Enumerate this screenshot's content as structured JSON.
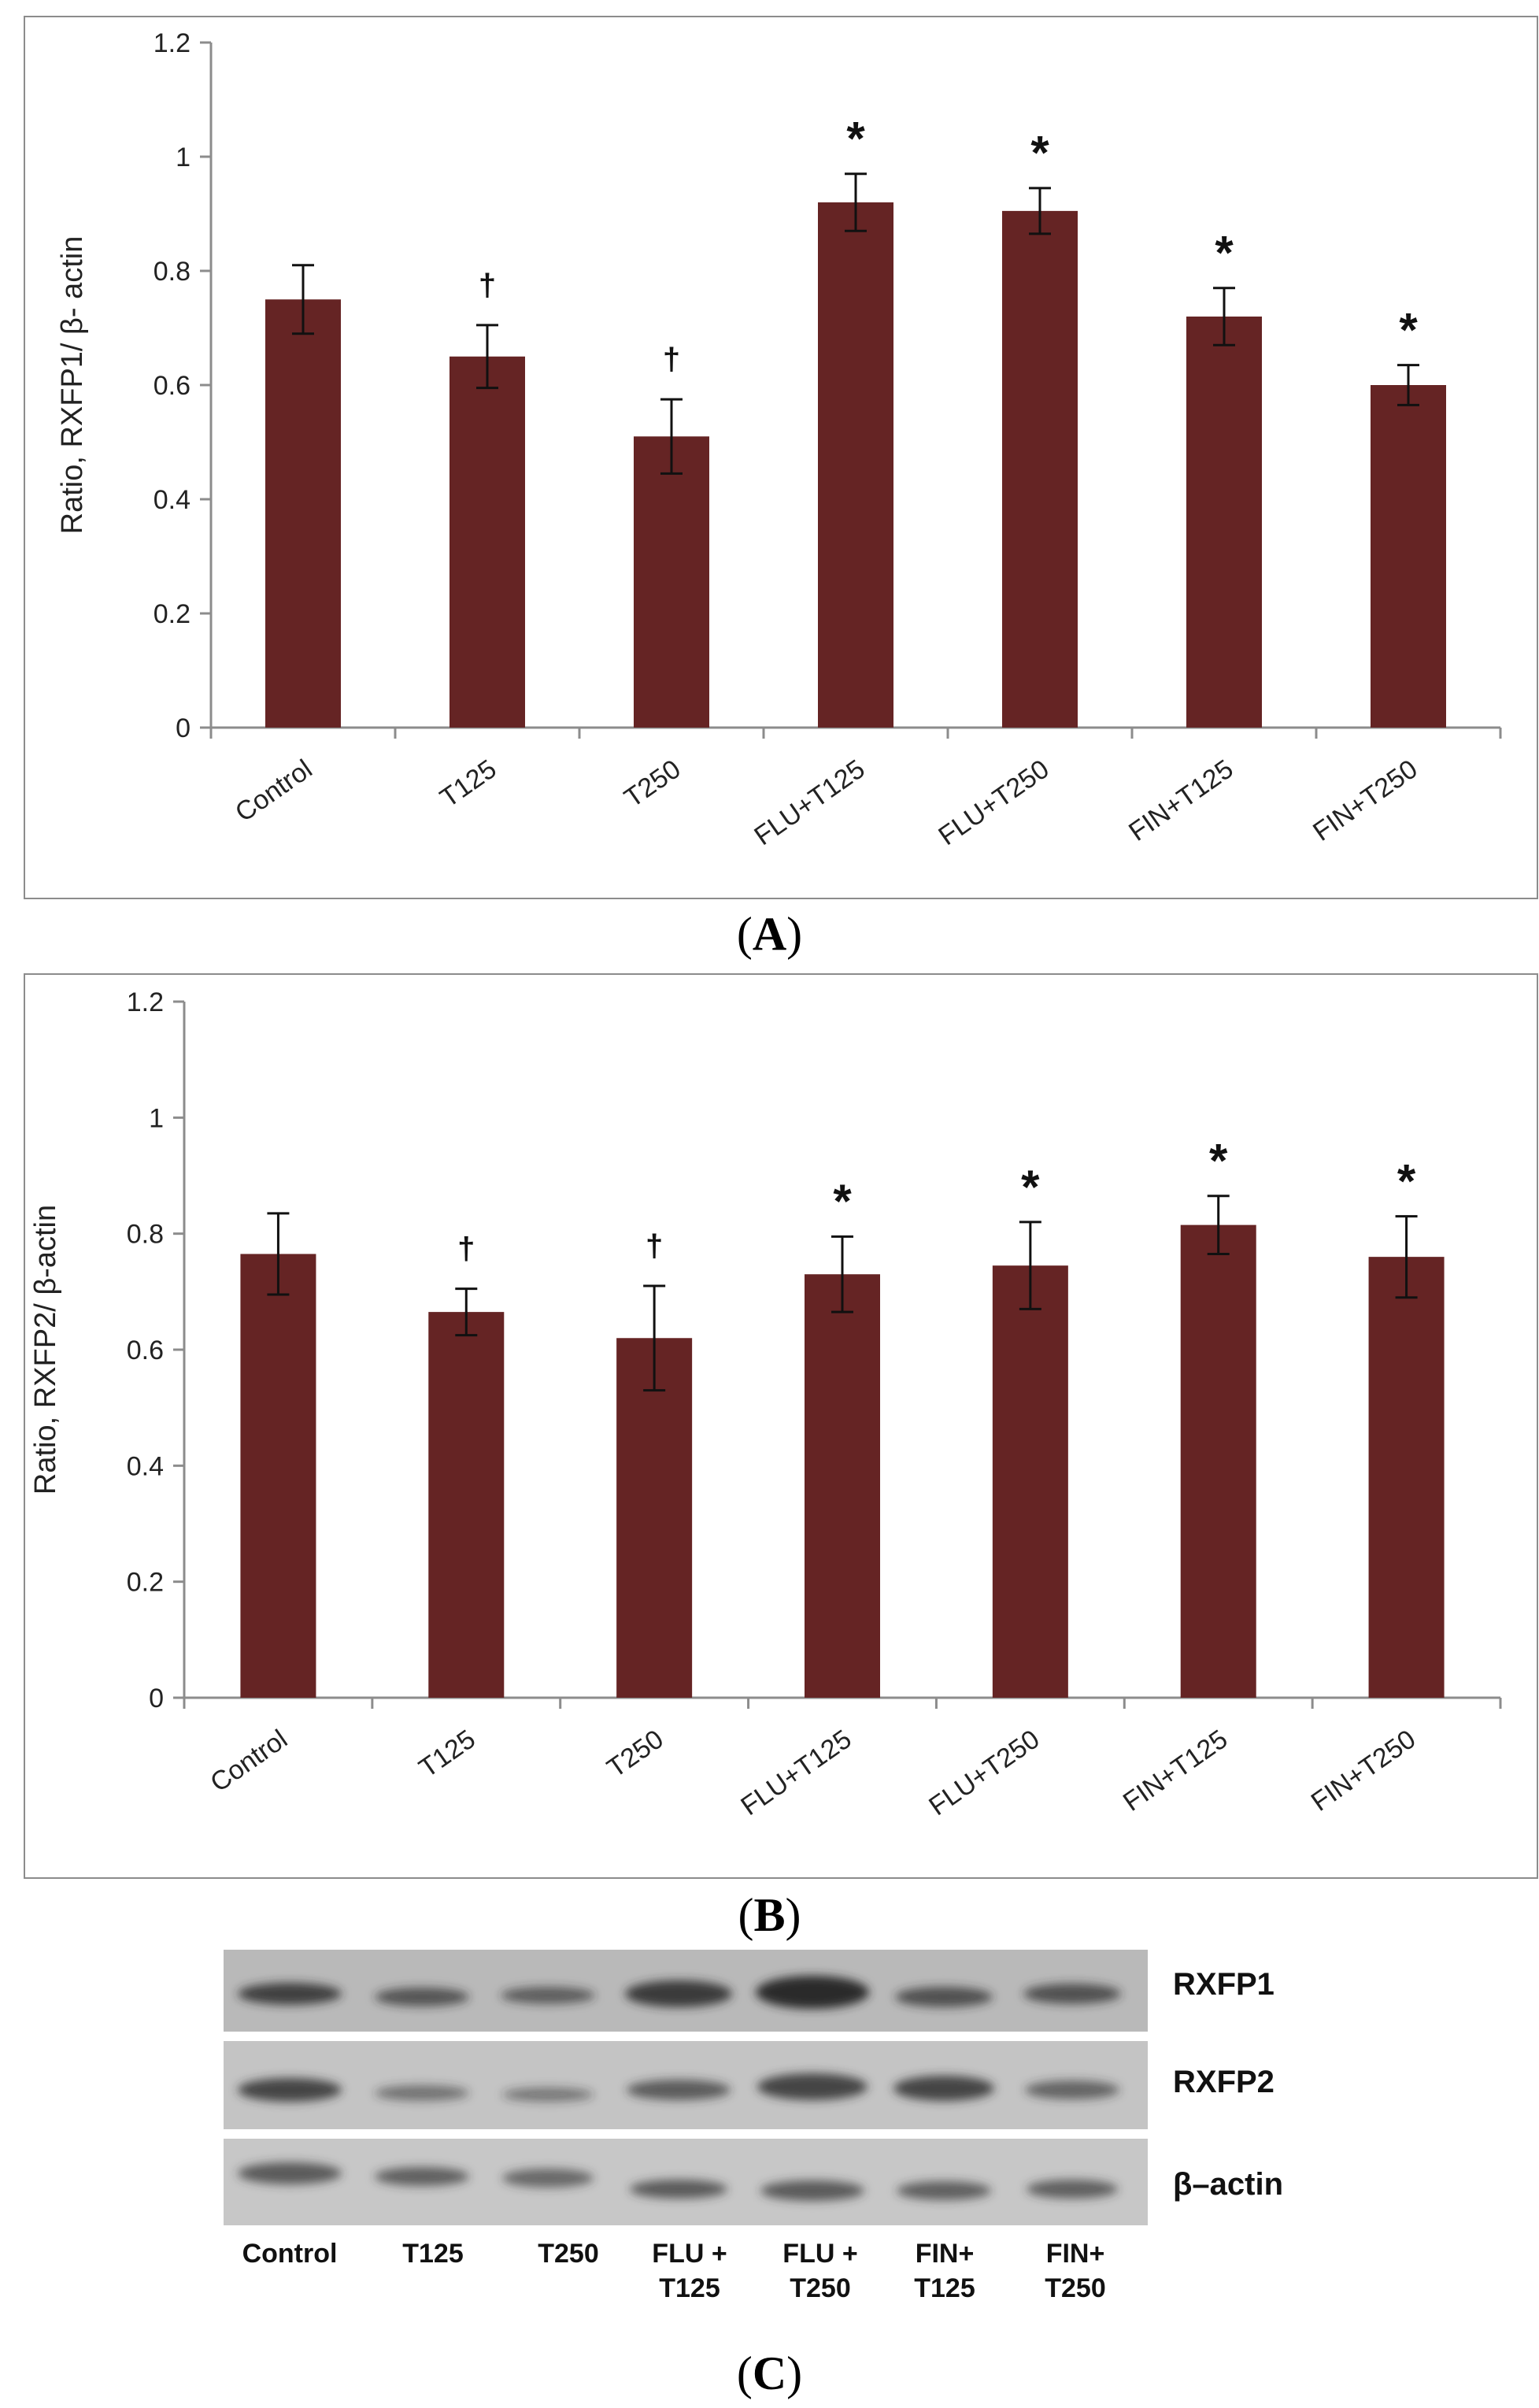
{
  "colors": {
    "bar": "#652424",
    "axis": "#8c8c8c",
    "text": "#222222"
  },
  "panels": {
    "a": {
      "label_open": "(",
      "label_letter": "A",
      "label_close": ")"
    },
    "b": {
      "label_open": "(",
      "label_letter": "B",
      "label_close": ")"
    },
    "c": {
      "label_open": "(",
      "label_letter": "C",
      "label_close": ")"
    }
  },
  "chart_data": [
    {
      "id": "A",
      "type": "bar",
      "title": "",
      "xlabel": "",
      "ylabel": "Ratio, RXFP1/ β- actin",
      "ylim": [
        0,
        1.2
      ],
      "yticks": [
        "0",
        "0.2",
        "0.4",
        "0.6",
        "0.8",
        "1",
        "1.2"
      ],
      "categories": [
        "Control",
        "T125",
        "T250",
        "FLU+T125",
        "FLU+T250",
        "FIN+T125",
        "FIN+T250"
      ],
      "values": [
        0.75,
        0.65,
        0.51,
        0.92,
        0.905,
        0.72,
        0.6
      ],
      "errors": [
        0.06,
        0.055,
        0.065,
        0.05,
        0.04,
        0.05,
        0.035
      ],
      "annotations": [
        "",
        "†",
        "†",
        "*",
        "*",
        "*",
        "*"
      ],
      "grid": false
    },
    {
      "id": "B",
      "type": "bar",
      "title": "",
      "xlabel": "",
      "ylabel": "Ratio, RXFP2/ β-actin",
      "ylim": [
        0,
        1.2
      ],
      "yticks": [
        "0",
        "0.2",
        "0.4",
        "0.6",
        "0.8",
        "1",
        "1.2"
      ],
      "categories": [
        "Control",
        "T125",
        "T250",
        "FLU+T125",
        "FLU+T250",
        "FIN+T125",
        "FIN+T250"
      ],
      "values": [
        0.765,
        0.665,
        0.62,
        0.73,
        0.745,
        0.815,
        0.76
      ],
      "errors": [
        0.07,
        0.04,
        0.09,
        0.065,
        0.075,
        0.05,
        0.07
      ],
      "annotations": [
        "",
        "†",
        "†",
        "*",
        "*",
        "*",
        "*"
      ],
      "grid": false
    }
  ],
  "blot": {
    "proteins": [
      "RXFP1",
      "RXFP2",
      "β–actin"
    ],
    "lanes": [
      {
        "line1": "Control",
        "line2": ""
      },
      {
        "line1": "T125",
        "line2": ""
      },
      {
        "line1": "T250",
        "line2": ""
      },
      {
        "line1": "FLU +",
        "line2": "T125"
      },
      {
        "line1": "FLU +",
        "line2": "T250"
      },
      {
        "line1": "FIN+",
        "line2": "T125"
      },
      {
        "line1": "FIN+",
        "line2": "T250"
      }
    ]
  }
}
